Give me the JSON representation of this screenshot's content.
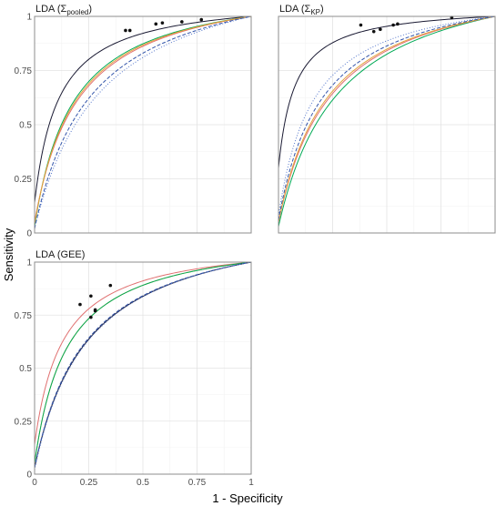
{
  "chart_data": {
    "type": "line",
    "xlabel": "1 - Specificity",
    "ylabel": "Sensitivity",
    "xlim": [
      0,
      1
    ],
    "ylim": [
      0,
      1
    ],
    "grid": true,
    "legend": "none",
    "x_ticks": [
      "0",
      "0.25",
      "0.5",
      "0.75",
      "1"
    ],
    "y_ticks": [
      "0",
      "0.25",
      "0.5",
      "0.75",
      "1"
    ],
    "panels": [
      {
        "title": "LDA (Σpooled)",
        "title_main": "LDA (Σ",
        "title_sub": "pooled",
        "title_end": ")",
        "show_x_ticks": false,
        "show_y_ticks": true,
        "series": [
          {
            "color": "#1a1a33",
            "dash": "solid",
            "k": 0.1,
            "y0": 0.14,
            "point": [
              0.42,
              0.935
            ]
          },
          {
            "color": "#00aa55",
            "dash": "solid",
            "k": 0.15,
            "y0": 0.03,
            "point": [
              0.56,
              0.965
            ]
          },
          {
            "color": "#e07070",
            "dash": "solid",
            "k": 0.17,
            "y0": 0.05,
            "point": [
              0.59,
              0.97
            ]
          },
          {
            "color": "#e3a23a",
            "dash": "solid",
            "k": 0.16,
            "y0": 0.04,
            "point": [
              0.44,
              0.935
            ]
          },
          {
            "color": "#3355aa",
            "dash": "4,2",
            "k": 0.21,
            "y0": 0.02,
            "point": [
              0.68,
              0.975
            ]
          },
          {
            "color": "#5577cc",
            "dash": "1,2",
            "k": 0.24,
            "y0": 0.02,
            "point": [
              0.77,
              0.985
            ]
          }
        ]
      },
      {
        "title": "LDA (ΣKP)",
        "title_main": "LDA (Σ",
        "title_sub": "KP",
        "title_end": ")",
        "show_x_ticks": false,
        "show_y_ticks": false,
        "series": [
          {
            "color": "#1a1a33",
            "dash": "solid",
            "k": 0.07,
            "y0": 0.3,
            "point": [
              0.38,
              0.96
            ]
          },
          {
            "color": "#00aa55",
            "dash": "solid",
            "k": 0.22,
            "y0": 0.03,
            "point": [
              0.44,
              0.93
            ]
          },
          {
            "color": "#e07070",
            "dash": "solid",
            "k": 0.2,
            "y0": 0.05,
            "point": [
              0.47,
              0.94
            ]
          },
          {
            "color": "#e3a23a",
            "dash": "solid",
            "k": 0.19,
            "y0": 0.05,
            "point": [
              0.53,
              0.96
            ]
          },
          {
            "color": "#3355aa",
            "dash": "4,2",
            "k": 0.17,
            "y0": 0.06,
            "point": [
              0.55,
              0.965
            ]
          },
          {
            "color": "#5577cc",
            "dash": "1,2",
            "k": 0.14,
            "y0": 0.08,
            "point": [
              0.8,
              0.995
            ]
          }
        ]
      },
      {
        "title": "LDA (GEE)",
        "title_main": "LDA (GEE)",
        "title_sub": "",
        "title_end": "",
        "show_x_ticks": true,
        "show_y_ticks": true,
        "series": [
          {
            "color": "#e07070",
            "dash": "solid",
            "k": 0.115,
            "y0": 0.14,
            "point": [
              0.21,
              0.8
            ]
          },
          {
            "color": "#e3a23a",
            "dash": "solid",
            "k": 0.13,
            "y0": 0.05,
            "point": [
              0.26,
              0.84
            ]
          },
          {
            "color": "#00aa55",
            "dash": "solid",
            "k": 0.13,
            "y0": 0.05,
            "point": [
              0.35,
              0.89
            ]
          },
          {
            "color": "#1a1a33",
            "dash": "solid",
            "k": 0.2,
            "y0": 0.03,
            "point": [
              0.26,
              0.74
            ]
          },
          {
            "color": "#3355aa",
            "dash": "4,2",
            "k": 0.195,
            "y0": 0.03,
            "point": [
              0.28,
              0.77
            ]
          },
          {
            "color": "#5577cc",
            "dash": "1,2",
            "k": 0.2,
            "y0": 0.02,
            "point": [
              0.28,
              0.775
            ]
          }
        ]
      }
    ]
  }
}
